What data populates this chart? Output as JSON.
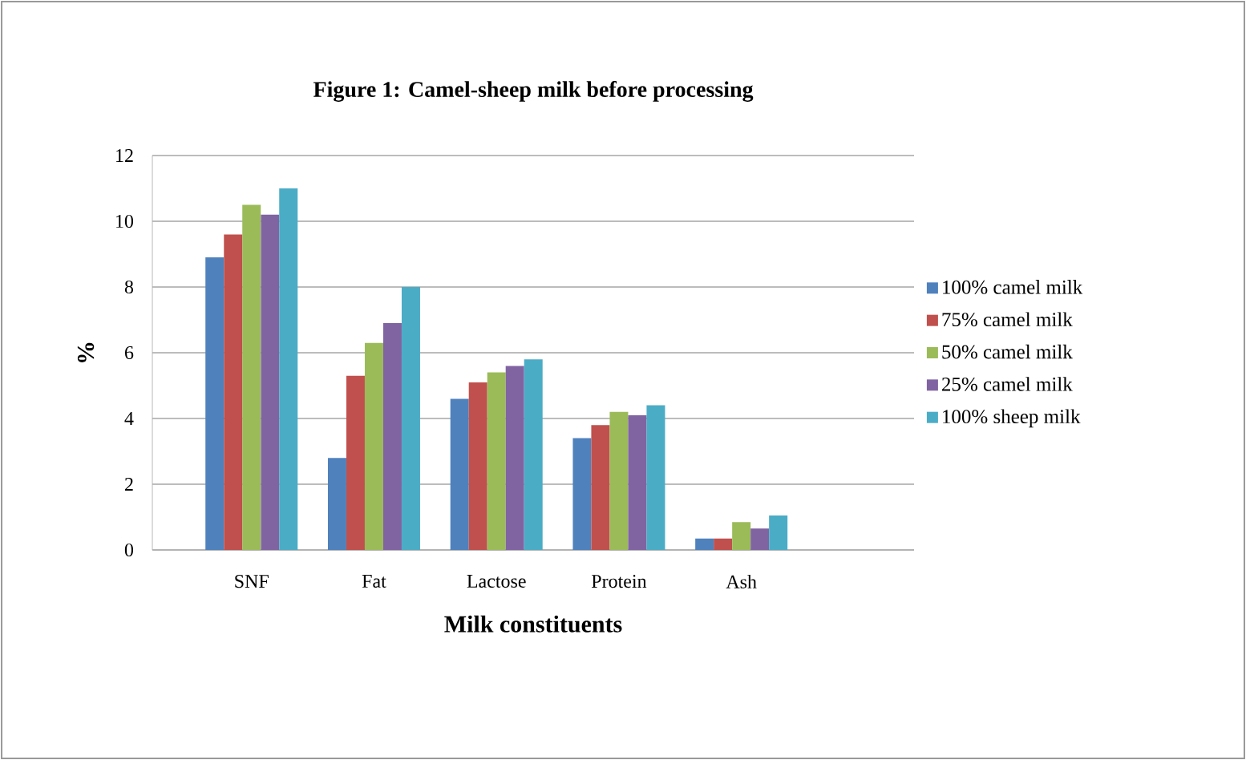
{
  "chart_data": {
    "type": "bar",
    "title": "Figure 1: Camel-sheep milk before processing",
    "xlabel": "Milk constituents",
    "ylabel": "%",
    "categories": [
      "SNF",
      "Fat",
      "Lactose",
      "Protein",
      "Ash"
    ],
    "series": [
      {
        "name": "100% camel milk",
        "color": "#4f81bd",
        "values": [
          8.9,
          2.8,
          4.6,
          3.4,
          0.35
        ]
      },
      {
        "name": "75% camel milk",
        "color": "#c0504d",
        "values": [
          9.6,
          5.3,
          5.1,
          3.8,
          0.35
        ]
      },
      {
        "name": "50% camel milk",
        "color": "#9bbb59",
        "values": [
          10.5,
          6.3,
          5.4,
          4.2,
          0.85
        ]
      },
      {
        "name": "25% camel milk",
        "color": "#8064a2",
        "values": [
          10.2,
          6.9,
          5.6,
          4.1,
          0.65
        ]
      },
      {
        "name": "100% sheep milk",
        "color": "#4bacc6",
        "values": [
          11.0,
          8.0,
          5.8,
          4.4,
          1.05
        ]
      }
    ],
    "ylim": [
      0,
      12
    ],
    "yticks": [
      0,
      2,
      4,
      6,
      8,
      10,
      12
    ],
    "grid": "y",
    "legend": "right"
  }
}
